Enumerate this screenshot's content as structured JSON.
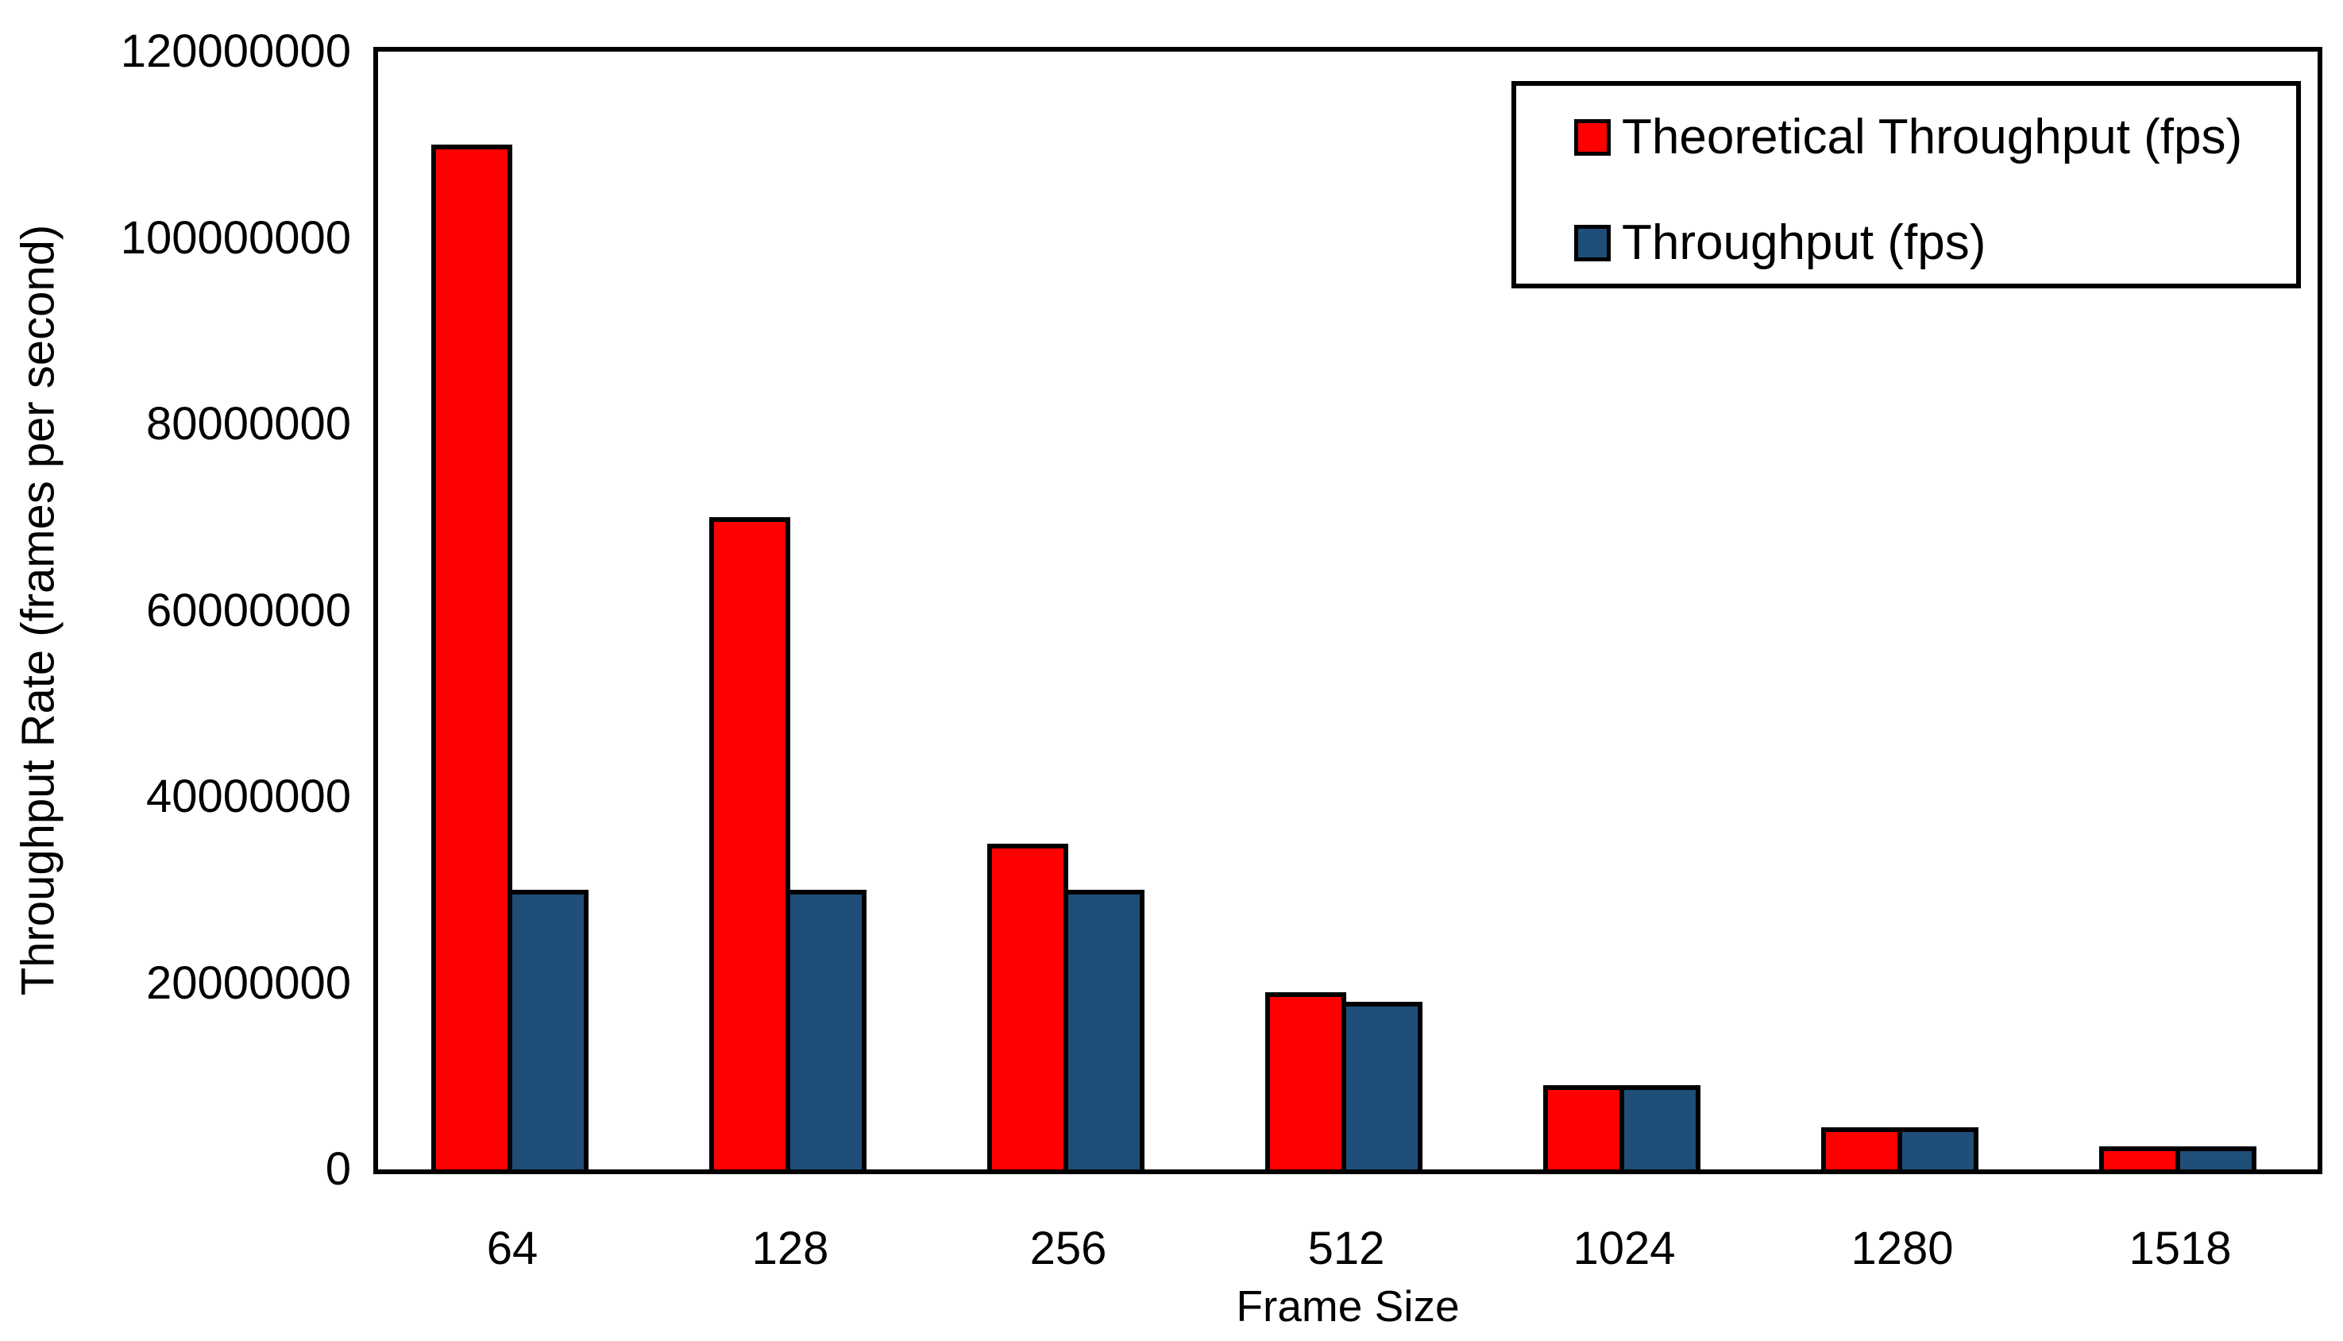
{
  "chart_data": {
    "type": "bar",
    "title": "",
    "xlabel": "Frame Size",
    "ylabel": "Throughput Rate (frames per second)",
    "categories": [
      "64",
      "128",
      "256",
      "512",
      "1024",
      "1280",
      "1518"
    ],
    "series": [
      {
        "name": "Theoretical Throughput (fps)",
        "color": "#FF0000",
        "values": [
          110000000,
          70000000,
          35000000,
          19000000,
          9000000,
          4500000,
          2500000
        ]
      },
      {
        "name": "Throughput (fps)",
        "color": "#1F4E79",
        "values": [
          30000000,
          30000000,
          30000000,
          18000000,
          9000000,
          4500000,
          2500000
        ]
      }
    ],
    "ylim": [
      0,
      120000000
    ],
    "ytick_step": 20000000,
    "ytick_labels": [
      "0",
      "20000000",
      "40000000",
      "60000000",
      "80000000",
      "100000000",
      "120000000"
    ],
    "grid": false,
    "legend_position": "top-right",
    "bar_border_color": "#000000",
    "plot_border_color": "#000000",
    "background_color": "#FFFFFF"
  },
  "legend": {
    "items": [
      {
        "label": "Theoretical Throughput (fps)",
        "color": "#FF0000"
      },
      {
        "label": "Throughput (fps)",
        "color": "#1F4E79"
      }
    ]
  }
}
